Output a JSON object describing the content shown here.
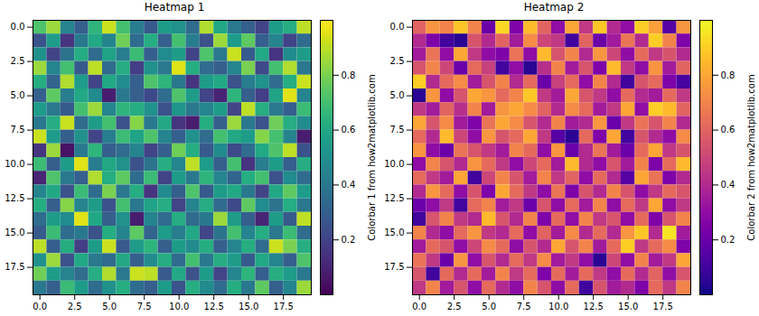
{
  "chart_data": [
    {
      "type": "heatmap",
      "title": "Heatmap 1",
      "color": "viridis",
      "xlim": [
        -0.5,
        19.5
      ],
      "ylim": [
        19.5,
        -0.5
      ],
      "xticks": [
        {
          "value": 0,
          "label": "0.0"
        },
        2.5,
        {
          "value": 5,
          "label": "5.0"
        },
        7.5,
        {
          "value": 10,
          "label": "10.0"
        },
        12.5,
        {
          "value": 15,
          "label": "15.0"
        },
        17.5
      ],
      "yticks": [
        {
          "value": 0,
          "label": "0.0"
        },
        2.5,
        {
          "value": 5,
          "label": "5.0"
        },
        7.5,
        {
          "value": 10,
          "label": "10.0"
        },
        12.5,
        {
          "value": 15,
          "label": "15.0"
        },
        17.5
      ],
      "colorbar_label": "Colorbar 1 from how2matplotlib.com",
      "colorbar_range": [
        0,
        1
      ],
      "colorbar_ticks": [
        0.2,
        0.4,
        0.6,
        0.8
      ],
      "cells": [
        [
          0.72,
          0.85,
          0.45,
          0.3,
          0.65,
          0.92,
          0.7,
          0.42,
          0.28,
          0.55,
          0.5,
          0.35,
          0.88,
          0.6,
          0.4,
          0.3,
          0.2,
          0.55,
          0.62,
          0.9
        ],
        [
          0.25,
          0.55,
          0.15,
          0.4,
          0.6,
          0.45,
          0.78,
          0.35,
          0.62,
          0.3,
          0.7,
          0.42,
          0.25,
          0.85,
          0.55,
          0.75,
          0.3,
          0.45,
          0.2,
          0.35
        ],
        [
          0.5,
          0.2,
          0.38,
          0.62,
          0.35,
          0.58,
          0.42,
          0.68,
          0.3,
          0.48,
          0.55,
          0.2,
          0.72,
          0.4,
          0.92,
          0.28,
          0.6,
          0.15,
          0.48,
          0.55
        ],
        [
          0.85,
          0.45,
          0.7,
          0.28,
          0.9,
          0.35,
          0.62,
          0.18,
          0.5,
          0.4,
          0.95,
          0.62,
          0.35,
          0.3,
          0.45,
          0.8,
          0.22,
          0.7,
          0.88,
          0.4
        ],
        [
          0.62,
          0.32,
          0.88,
          0.55,
          0.2,
          0.6,
          0.48,
          0.3,
          0.72,
          0.65,
          0.4,
          0.15,
          0.55,
          0.6,
          0.25,
          0.42,
          0.5,
          0.35,
          0.62,
          0.92
        ],
        [
          0.3,
          0.75,
          0.42,
          0.6,
          0.48,
          0.08,
          0.4,
          0.3,
          0.22,
          0.35,
          0.72,
          0.55,
          0.2,
          0.1,
          0.65,
          0.3,
          0.18,
          0.58,
          0.95,
          0.45
        ],
        [
          0.55,
          0.4,
          0.28,
          0.7,
          0.85,
          0.45,
          0.65,
          0.62,
          0.5,
          0.25,
          0.52,
          0.4,
          0.45,
          0.55,
          0.2,
          0.9,
          0.62,
          0.4,
          0.3,
          0.68
        ],
        [
          0.4,
          0.62,
          0.92,
          0.35,
          0.55,
          0.7,
          0.25,
          0.82,
          0.4,
          0.6,
          0.15,
          0.08,
          0.62,
          0.3,
          0.85,
          0.4,
          0.25,
          0.78,
          0.62,
          0.48
        ],
        [
          0.92,
          0.55,
          0.3,
          0.5,
          0.2,
          0.42,
          0.68,
          0.58,
          0.72,
          0.45,
          0.3,
          0.5,
          0.35,
          0.7,
          0.6,
          0.55,
          0.82,
          0.7,
          0.45,
          0.08
        ],
        [
          0.15,
          0.85,
          0.05,
          0.4,
          0.65,
          0.3,
          0.35,
          0.45,
          0.2,
          0.3,
          0.78,
          0.62,
          0.28,
          0.48,
          0.22,
          0.35,
          0.6,
          0.72,
          0.9,
          0.25
        ],
        [
          0.68,
          0.3,
          0.55,
          0.95,
          0.42,
          0.6,
          0.5,
          0.25,
          0.38,
          0.62,
          0.45,
          0.9,
          0.55,
          0.3,
          0.7,
          0.15,
          0.42,
          0.55,
          0.3,
          0.62
        ],
        [
          0.1,
          0.72,
          0.4,
          0.3,
          0.88,
          0.62,
          0.75,
          0.35,
          0.68,
          0.2,
          0.55,
          0.4,
          0.65,
          0.45,
          0.32,
          0.62,
          0.7,
          0.25,
          0.48,
          0.35
        ],
        [
          0.45,
          0.6,
          0.25,
          0.68,
          0.35,
          0.8,
          0.4,
          0.62,
          0.15,
          0.48,
          0.3,
          0.72,
          0.28,
          0.55,
          0.6,
          0.4,
          0.2,
          0.6,
          0.75,
          0.55
        ],
        [
          0.62,
          0.3,
          0.82,
          0.45,
          0.55,
          0.25,
          0.7,
          0.4,
          0.58,
          0.62,
          0.2,
          0.45,
          0.62,
          0.35,
          0.22,
          0.75,
          0.48,
          0.38,
          0.62,
          0.4
        ],
        [
          0.35,
          0.55,
          0.48,
          0.95,
          0.6,
          0.3,
          0.5,
          0.08,
          0.45,
          0.35,
          0.62,
          0.35,
          0.4,
          0.85,
          0.55,
          0.3,
          0.1,
          0.55,
          0.28,
          0.9
        ],
        [
          0.28,
          0.68,
          0.35,
          0.4,
          0.25,
          0.62,
          0.45,
          0.75,
          0.32,
          0.55,
          0.42,
          0.6,
          0.2,
          0.38,
          0.7,
          0.45,
          0.62,
          0.4,
          0.68,
          0.35
        ],
        [
          0.9,
          0.3,
          0.62,
          0.18,
          0.55,
          0.92,
          0.28,
          0.55,
          0.65,
          0.3,
          0.55,
          0.48,
          0.62,
          0.3,
          0.45,
          0.62,
          0.35,
          0.92,
          0.8,
          0.62
        ],
        [
          0.5,
          0.85,
          0.25,
          0.6,
          0.4,
          0.35,
          0.6,
          0.3,
          0.48,
          0.62,
          0.35,
          0.7,
          0.4,
          0.62,
          0.55,
          0.28,
          0.6,
          0.45,
          0.3,
          0.72
        ],
        [
          0.78,
          0.55,
          0.45,
          0.35,
          0.62,
          0.88,
          0.4,
          0.92,
          0.9,
          0.28,
          0.6,
          0.25,
          0.55,
          0.2,
          0.45,
          0.65,
          0.3,
          0.62,
          0.55,
          0.4
        ],
        [
          0.4,
          0.3,
          0.68,
          0.55,
          0.35,
          0.5,
          0.62,
          0.35,
          0.3,
          0.55,
          0.25,
          0.62,
          0.48,
          0.35,
          0.62,
          0.4,
          0.75,
          0.3,
          0.45,
          0.85
        ]
      ]
    },
    {
      "type": "heatmap",
      "title": "Heatmap 2",
      "color": "plasma",
      "xlim": [
        -0.5,
        19.5
      ],
      "ylim": [
        19.5,
        -0.5
      ],
      "xticks": [
        {
          "value": 0,
          "label": "0.0"
        },
        2.5,
        {
          "value": 5,
          "label": "5.0"
        },
        7.5,
        {
          "value": 10,
          "label": "10.0"
        },
        12.5,
        {
          "value": 15,
          "label": "15.0"
        },
        17.5
      ],
      "yticks": [
        {
          "value": 0,
          "label": "0.0"
        },
        2.5,
        {
          "value": 5,
          "label": "5.0"
        },
        7.5,
        {
          "value": 10,
          "label": "10.0"
        },
        12.5,
        {
          "value": 15,
          "label": "15.0"
        },
        17.5
      ],
      "colorbar_label": "Colorbar 2 from how2matplotlib.com",
      "colorbar_range": [
        0,
        1
      ],
      "colorbar_ticks": [
        0.2,
        0.4,
        0.6,
        0.8
      ],
      "cells": [
        [
          0.6,
          0.75,
          0.7,
          0.88,
          0.7,
          0.2,
          0.92,
          0.25,
          0.85,
          0.6,
          0.3,
          0.8,
          0.45,
          0.88,
          0.4,
          0.3,
          0.9,
          0.78,
          0.15,
          0.75
        ],
        [
          0.4,
          0.25,
          0.1,
          0.05,
          0.55,
          0.4,
          0.6,
          0.35,
          0.72,
          0.5,
          0.45,
          0.1,
          0.6,
          0.2,
          0.35,
          0.65,
          0.4,
          0.9,
          0.7,
          0.25
        ],
        [
          0.35,
          0.65,
          0.3,
          0.8,
          0.45,
          0.3,
          0.25,
          0.65,
          0.3,
          0.85,
          0.55,
          0.7,
          0.4,
          0.75,
          0.5,
          0.3,
          0.62,
          0.45,
          0.55,
          0.4
        ],
        [
          0.55,
          0.7,
          0.5,
          0.2,
          0.62,
          0.48,
          0.1,
          0.3,
          0.05,
          0.42,
          0.7,
          0.35,
          0.55,
          0.25,
          0.85,
          0.45,
          0.3,
          0.75,
          0.35,
          0.6
        ],
        [
          0.9,
          0.4,
          0.62,
          0.72,
          0.35,
          0.55,
          0.7,
          0.4,
          0.62,
          0.2,
          0.48,
          0.62,
          0.3,
          0.7,
          0.4,
          0.1,
          0.55,
          0.62,
          0.25,
          0.12
        ],
        [
          0.05,
          0.75,
          0.3,
          0.55,
          0.8,
          0.75,
          0.62,
          0.7,
          0.88,
          0.45,
          0.35,
          0.8,
          0.55,
          0.45,
          0.3,
          0.62,
          0.4,
          0.35,
          0.62,
          0.45
        ],
        [
          0.45,
          0.35,
          0.6,
          0.42,
          0.7,
          0.35,
          0.75,
          0.8,
          0.72,
          0.6,
          0.4,
          0.72,
          0.62,
          0.35,
          0.45,
          0.8,
          0.3,
          0.9,
          0.85,
          0.6
        ],
        [
          0.8,
          0.55,
          0.72,
          0.35,
          0.25,
          0.65,
          0.8,
          0.72,
          0.55,
          0.4,
          0.7,
          0.35,
          0.4,
          0.75,
          0.2,
          0.45,
          0.65,
          0.55,
          0.7,
          0.4
        ],
        [
          0.62,
          0.4,
          0.85,
          0.5,
          0.3,
          0.75,
          0.55,
          0.62,
          0.8,
          0.45,
          0.15,
          0.05,
          0.62,
          0.25,
          0.8,
          0.1,
          0.55,
          0.4,
          0.3,
          0.72
        ],
        [
          0.75,
          0.3,
          0.2,
          0.65,
          0.55,
          0.45,
          0.35,
          0.7,
          0.62,
          0.3,
          0.75,
          0.2,
          0.4,
          0.65,
          0.35,
          0.2,
          0.62,
          0.8,
          0.45,
          0.55
        ],
        [
          0.3,
          0.7,
          0.55,
          0.4,
          0.75,
          0.62,
          0.45,
          0.3,
          0.5,
          0.62,
          0.35,
          0.85,
          0.4,
          0.3,
          0.55,
          0.35,
          0.7,
          0.25,
          0.62,
          0.85
        ],
        [
          0.62,
          0.45,
          0.35,
          0.8,
          0.1,
          0.5,
          0.7,
          0.55,
          0.35,
          0.7,
          0.45,
          0.6,
          0.3,
          0.62,
          0.4,
          0.15,
          0.8,
          0.65,
          0.25,
          0.4
        ],
        [
          0.4,
          0.75,
          0.62,
          0.3,
          0.55,
          0.25,
          0.8,
          0.62,
          0.45,
          0.3,
          0.65,
          0.25,
          0.55,
          0.4,
          0.7,
          0.55,
          0.3,
          0.45,
          0.62,
          0.55
        ],
        [
          0.2,
          0.3,
          0.45,
          0.1,
          0.62,
          0.7,
          0.35,
          0.45,
          0.2,
          0.55,
          0.3,
          0.62,
          0.35,
          0.7,
          0.3,
          0.62,
          0.45,
          0.8,
          0.3,
          0.45
        ],
        [
          0.1,
          0.55,
          0.7,
          0.45,
          0.4,
          0.85,
          0.55,
          0.4,
          0.7,
          0.25,
          0.62,
          0.3,
          0.7,
          0.45,
          0.55,
          0.3,
          0.62,
          0.25,
          0.55,
          0.7
        ],
        [
          0.7,
          0.4,
          0.3,
          0.62,
          0.75,
          0.45,
          0.4,
          0.62,
          0.3,
          0.6,
          0.35,
          0.72,
          0.4,
          0.62,
          0.4,
          0.75,
          0.88,
          0.4,
          0.95,
          0.35
        ],
        [
          0.35,
          0.62,
          0.55,
          0.3,
          0.5,
          0.72,
          0.62,
          0.3,
          0.55,
          0.4,
          0.8,
          0.55,
          0.7,
          0.35,
          0.62,
          0.9,
          0.45,
          0.62,
          0.72,
          0.25
        ],
        [
          0.65,
          0.45,
          0.2,
          0.75,
          0.3,
          0.55,
          0.4,
          0.62,
          0.45,
          0.72,
          0.35,
          0.45,
          0.3,
          0.05,
          0.5,
          0.3,
          0.7,
          0.35,
          0.45,
          0.8
        ],
        [
          0.55,
          0.1,
          0.62,
          0.4,
          0.62,
          0.35,
          0.7,
          0.45,
          0.62,
          0.25,
          0.62,
          0.35,
          0.62,
          0.45,
          0.3,
          0.62,
          0.4,
          0.6,
          0.3,
          0.55
        ],
        [
          0.45,
          0.7,
          0.35,
          0.55,
          0.3,
          0.62,
          0.4,
          0.3,
          0.7,
          0.55,
          0.3,
          0.62,
          0.1,
          0.55,
          0.35,
          0.4,
          0.25,
          0.62,
          0.45,
          0.7
        ]
      ]
    }
  ]
}
